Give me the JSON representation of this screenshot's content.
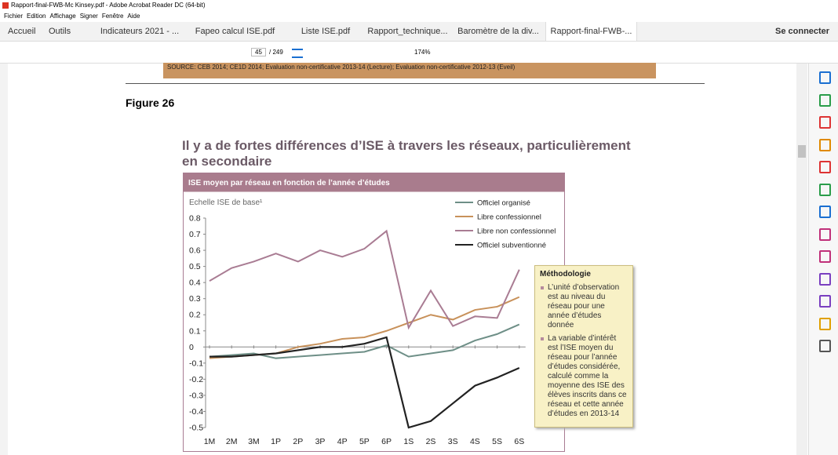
{
  "window_title": "Rapport-final-FWB-Mc Kinsey.pdf - Adobe Acrobat Reader DC (64-bit)",
  "menu": [
    "Fichier",
    "Edition",
    "Affichage",
    "Signer",
    "Fenêtre",
    "Aide"
  ],
  "tabs": [
    "Accueil",
    "Outils",
    "Indicateurs 2021 - ...",
    "Fapeo calcul ISE.pdf",
    "Liste ISE.pdf",
    "Rapport_technique...",
    "Baromètre de la div...",
    "Rapport-final-FWB-..."
  ],
  "sign_in": "Se connecter",
  "toolbar": {
    "page": "45",
    "page_total": "/ 249",
    "zoom": "174%"
  },
  "document": {
    "source": "SOURCE: CEB 2014; CE1D 2014; Evaluation non-certificative 2013-14 (Lecture); Evaluation non-certificative 2012-13 (Eveil)",
    "figure_label": "Figure 26",
    "heading": "Il y a de fortes différences d’ISE à travers les réseaux, particulièrement en secondaire",
    "method_title": "Méthodologie",
    "method_bullets": [
      "L’unité d’observation est au niveau du réseau pour une année d’études donnée",
      "La variable d’intérêt est l’ISE moyen du réseau pour l’année d’études considérée, calculé comme la moyenne des ISE des élèves inscrits dans ce réseau et cette année d’études en 2013-14"
    ]
  },
  "chart_data": {
    "type": "line",
    "title": "ISE moyen par réseau en fonction de l’année d’études",
    "y_label": "Echelle ISE de base¹",
    "categories": [
      "1M",
      "2M",
      "3M",
      "1P",
      "2P",
      "3P",
      "4P",
      "5P",
      "6P",
      "1S",
      "2S",
      "3S",
      "4S",
      "5S",
      "6S"
    ],
    "ylim": [
      -0.5,
      0.8
    ],
    "yticks": [
      0.8,
      0.7,
      0.6,
      0.5,
      0.4,
      0.3,
      0.2,
      0.1,
      0,
      -0.1,
      -0.2,
      -0.3,
      -0.4,
      -0.5
    ],
    "series": [
      {
        "name": "Officiel organisé",
        "color": "#6e8f87",
        "values": [
          -0.06,
          -0.05,
          -0.04,
          -0.07,
          -0.06,
          -0.05,
          -0.04,
          -0.03,
          0.01,
          -0.06,
          -0.04,
          -0.02,
          0.04,
          0.08,
          0.14
        ]
      },
      {
        "name": "Libre confessionnel",
        "color": "#c8915a",
        "values": [
          -0.07,
          -0.06,
          -0.05,
          -0.04,
          0.0,
          0.02,
          0.05,
          0.06,
          0.1,
          0.15,
          0.2,
          0.17,
          0.23,
          0.25,
          0.31
        ]
      },
      {
        "name": "Libre non confessionnel",
        "color": "#a97c93",
        "values": [
          0.41,
          0.49,
          0.53,
          0.58,
          0.53,
          0.6,
          0.56,
          0.61,
          0.72,
          0.12,
          0.35,
          0.13,
          0.19,
          0.18,
          0.48
        ]
      },
      {
        "name": "Officiel subventionné",
        "color": "#222222",
        "values": [
          -0.06,
          -0.06,
          -0.05,
          -0.04,
          -0.02,
          0.0,
          0.0,
          0.02,
          0.06,
          -0.5,
          -0.46,
          -0.35,
          -0.24,
          -0.19,
          -0.13
        ]
      }
    ]
  }
}
